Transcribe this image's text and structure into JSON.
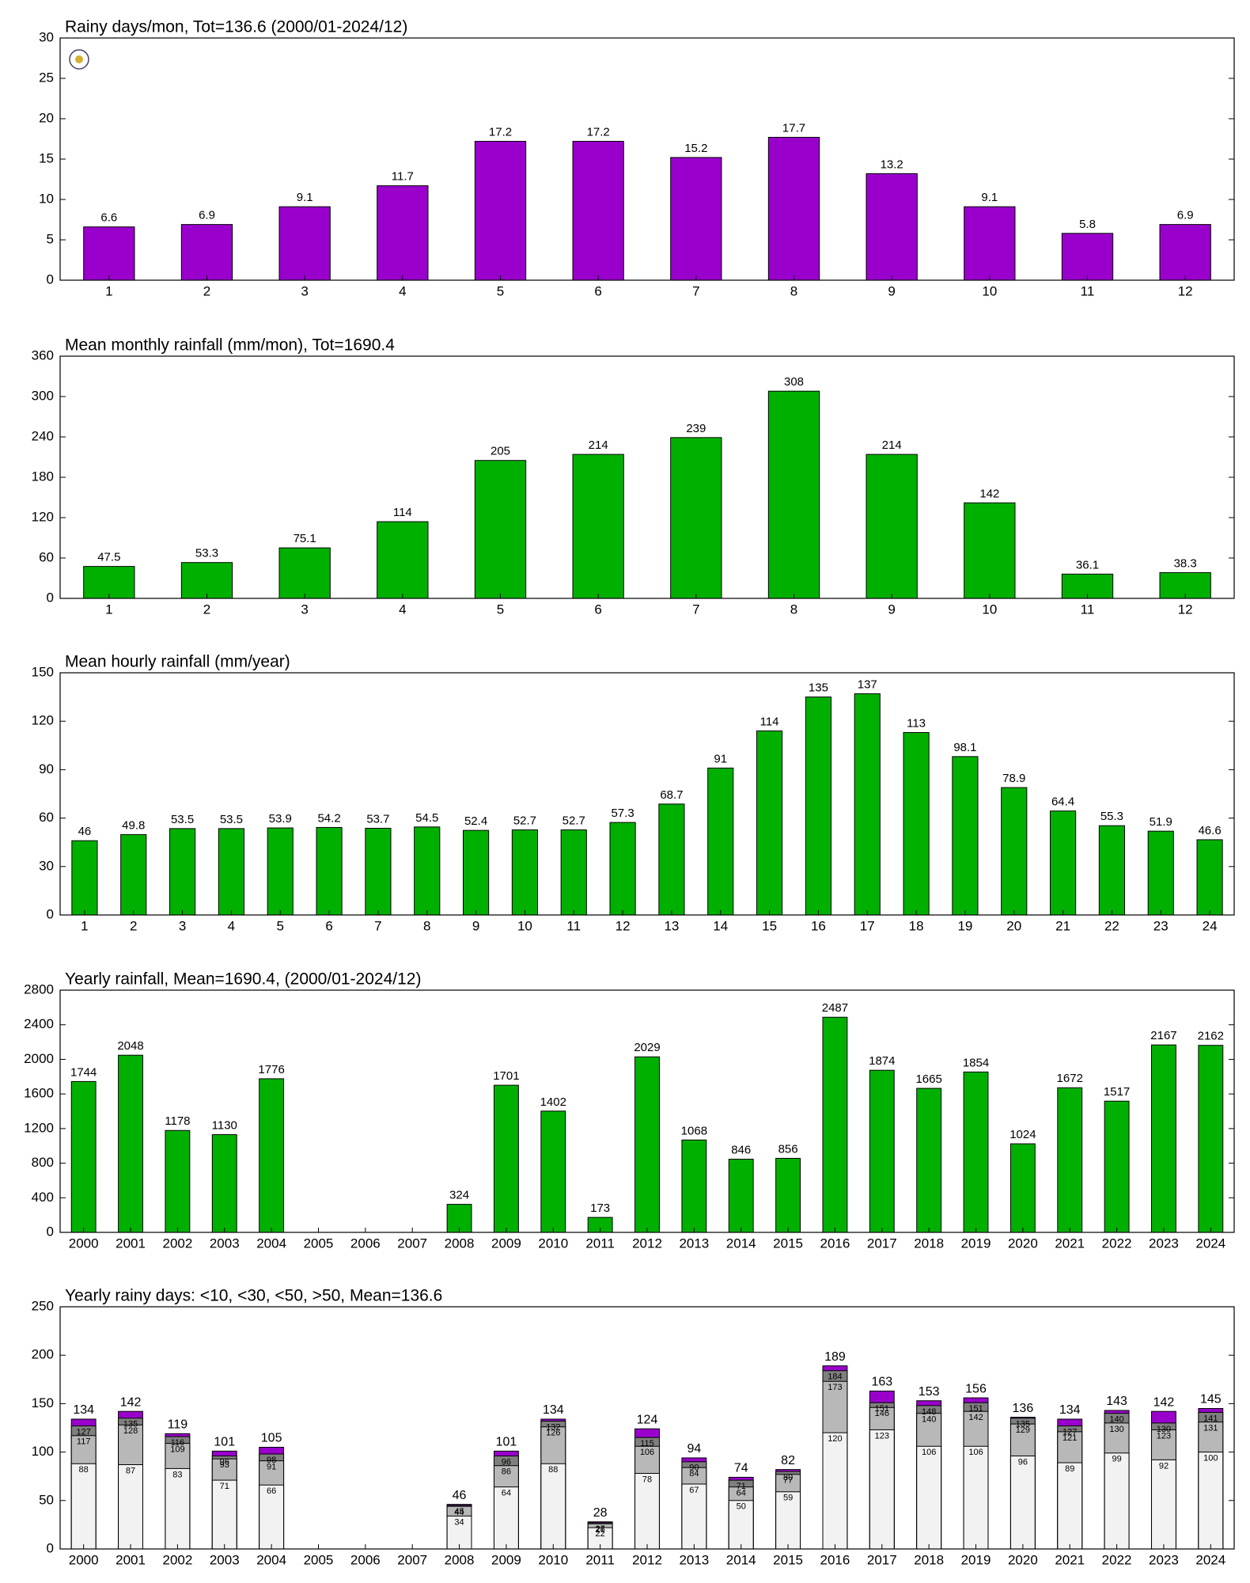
{
  "chart_data": [
    {
      "type": "bar",
      "title": "Rainy days/mon, Tot=136.6 (2000/01-2024/12)",
      "categories": [
        "1",
        "2",
        "3",
        "4",
        "5",
        "6",
        "7",
        "8",
        "9",
        "10",
        "11",
        "12"
      ],
      "values": [
        6.6,
        6.9,
        9.1,
        11.7,
        17.2,
        17.2,
        15.2,
        17.7,
        13.2,
        9.1,
        5.8,
        6.9
      ],
      "color": "#9900cc",
      "ylim": [
        0,
        30
      ],
      "yticks": [
        0,
        5,
        10,
        15,
        20,
        25,
        30
      ]
    },
    {
      "type": "bar",
      "title": "Mean monthly rainfall (mm/mon), Tot=1690.4",
      "categories": [
        "1",
        "2",
        "3",
        "4",
        "5",
        "6",
        "7",
        "8",
        "9",
        "10",
        "11",
        "12"
      ],
      "values": [
        47.5,
        53.3,
        75.1,
        114,
        205,
        214,
        239,
        308,
        214,
        142,
        36.1,
        38.3
      ],
      "color": "#00b000",
      "ylim": [
        0,
        360
      ],
      "yticks": [
        0,
        60,
        120,
        180,
        240,
        300,
        360
      ]
    },
    {
      "type": "bar",
      "title": "Mean hourly rainfall (mm/year)",
      "categories": [
        "1",
        "2",
        "3",
        "4",
        "5",
        "6",
        "7",
        "8",
        "9",
        "10",
        "11",
        "12",
        "13",
        "14",
        "15",
        "16",
        "17",
        "18",
        "19",
        "20",
        "21",
        "22",
        "23",
        "24"
      ],
      "values": [
        46,
        49.8,
        53.5,
        53.5,
        53.9,
        54.2,
        53.7,
        54.5,
        52.4,
        52.7,
        52.7,
        57.3,
        68.7,
        91,
        114,
        135,
        137,
        113,
        98.1,
        78.9,
        64.4,
        55.3,
        51.9,
        46.6
      ],
      "color": "#00b000",
      "ylim": [
        0,
        150
      ],
      "yticks": [
        0,
        30,
        60,
        90,
        120,
        150
      ]
    },
    {
      "type": "bar",
      "title": "Yearly rainfall, Mean=1690.4, (2000/01-2024/12)",
      "categories": [
        "2000",
        "2001",
        "2002",
        "2003",
        "2004",
        "2005",
        "2006",
        "2007",
        "2008",
        "2009",
        "2010",
        "2011",
        "2012",
        "2013",
        "2014",
        "2015",
        "2016",
        "2017",
        "2018",
        "2019",
        "2020",
        "2021",
        "2022",
        "2023",
        "2024"
      ],
      "values": [
        1744,
        2048,
        1178,
        1130,
        1776,
        null,
        null,
        null,
        324,
        1701,
        1402,
        173,
        2029,
        1068,
        846,
        856,
        2487,
        1874,
        1665,
        1854,
        1024,
        1672,
        1517,
        2167,
        2162
      ],
      "color": "#00b000",
      "ylim": [
        0,
        2800
      ],
      "yticks": [
        0,
        400,
        800,
        1200,
        1600,
        2000,
        2400,
        2800
      ]
    },
    {
      "type": "overlap",
      "title": "Yearly rainy days: <10, <30, <50, >50, Mean=136.6",
      "categories": [
        "2000",
        "2001",
        "2002",
        "2003",
        "2004",
        "2005",
        "2006",
        "2007",
        "2008",
        "2009",
        "2010",
        "2011",
        "2012",
        "2013",
        "2014",
        "2015",
        "2016",
        "2017",
        "2018",
        "2019",
        "2020",
        "2021",
        "2022",
        "2023",
        "2024"
      ],
      "series": [
        {
          "color": "#9900cc",
          "values": [
            134,
            142,
            119,
            101,
            105,
            null,
            null,
            null,
            46,
            101,
            134,
            28,
            124,
            94,
            74,
            82,
            189,
            163,
            153,
            156,
            136,
            134,
            143,
            142,
            145
          ]
        },
        {
          "color": "#7f7f7f",
          "values": [
            127,
            135,
            116,
            96,
            98,
            null,
            null,
            null,
            45,
            96,
            132,
            27,
            115,
            90,
            71,
            80,
            184,
            151,
            148,
            151,
            135,
            127,
            140,
            130,
            141
          ]
        },
        {
          "color": "#b8b8b8",
          "values": [
            117,
            128,
            109,
            93,
            91,
            null,
            null,
            null,
            44,
            86,
            126,
            26,
            106,
            84,
            64,
            77,
            173,
            146,
            140,
            142,
            129,
            121,
            130,
            123,
            131
          ]
        },
        {
          "color": "#f2f2f2",
          "values": [
            88,
            87,
            83,
            71,
            66,
            null,
            null,
            null,
            34,
            64,
            88,
            22,
            78,
            67,
            50,
            59,
            120,
            123,
            106,
            106,
            96,
            89,
            99,
            92,
            100
          ]
        }
      ],
      "ylim": [
        0,
        250
      ],
      "yticks": [
        0,
        50,
        100,
        150,
        200,
        250
      ]
    }
  ]
}
